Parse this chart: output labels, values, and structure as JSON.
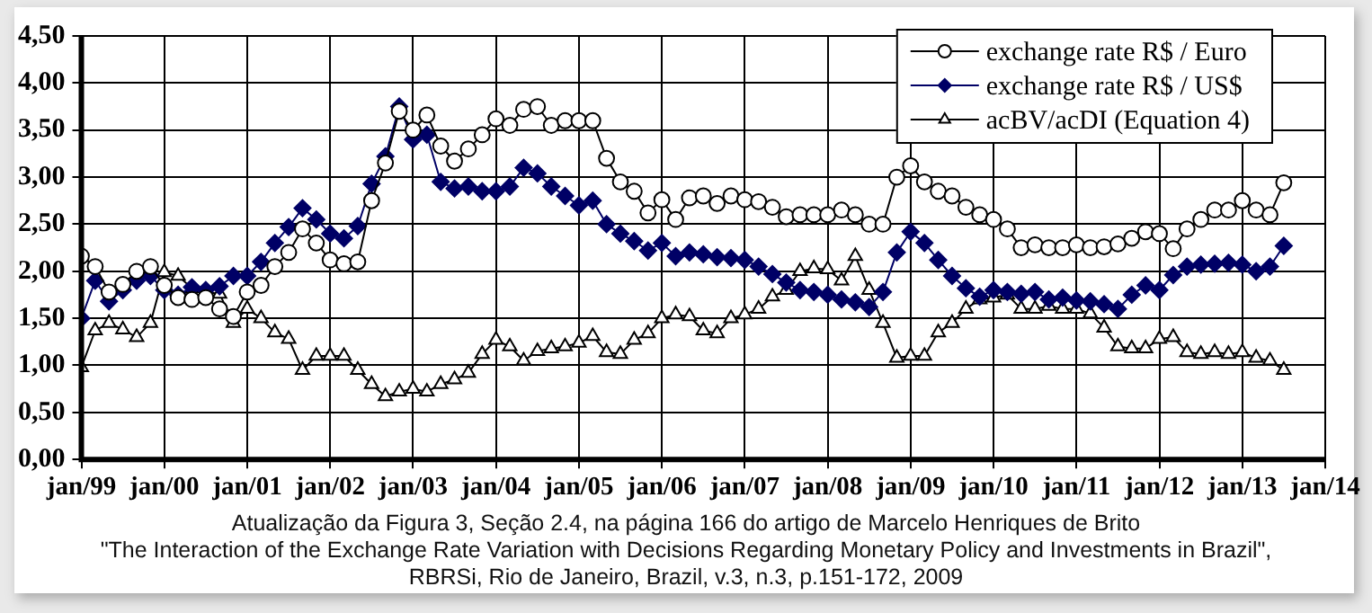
{
  "chart_data": {
    "type": "line",
    "x": [
      "1999-01",
      "1999-03",
      "1999-05",
      "1999-07",
      "1999-09",
      "1999-11",
      "2000-01",
      "2000-03",
      "2000-05",
      "2000-07",
      "2000-09",
      "2000-11",
      "2001-01",
      "2001-03",
      "2001-05",
      "2001-07",
      "2001-09",
      "2001-11",
      "2002-01",
      "2002-03",
      "2002-05",
      "2002-07",
      "2002-09",
      "2002-11",
      "2003-01",
      "2003-03",
      "2003-05",
      "2003-07",
      "2003-09",
      "2003-11",
      "2004-01",
      "2004-03",
      "2004-05",
      "2004-07",
      "2004-09",
      "2004-11",
      "2005-01",
      "2005-03",
      "2005-05",
      "2005-07",
      "2005-09",
      "2005-11",
      "2006-01",
      "2006-03",
      "2006-05",
      "2006-07",
      "2006-09",
      "2006-11",
      "2007-01",
      "2007-03",
      "2007-05",
      "2007-07",
      "2007-09",
      "2007-11",
      "2008-01",
      "2008-03",
      "2008-05",
      "2008-07",
      "2008-09",
      "2008-11",
      "2009-01",
      "2009-03",
      "2009-05",
      "2009-07",
      "2009-09",
      "2009-11",
      "2010-01",
      "2010-03",
      "2010-05",
      "2010-07",
      "2010-09",
      "2010-11",
      "2011-01",
      "2011-03",
      "2011-05",
      "2011-07",
      "2011-09",
      "2011-11",
      "2012-01",
      "2012-03",
      "2012-05",
      "2012-07",
      "2012-09",
      "2012-11",
      "2013-01",
      "2013-03",
      "2013-05",
      "2013-07"
    ],
    "series": [
      {
        "name": "exchange rate R$ / Euro",
        "color": "#000000",
        "marker": "circle",
        "values": [
          2.16,
          2.05,
          1.78,
          1.86,
          2.0,
          2.05,
          1.85,
          1.72,
          1.7,
          1.72,
          1.6,
          1.52,
          1.78,
          1.85,
          2.05,
          2.2,
          2.45,
          2.3,
          2.12,
          2.08,
          2.1,
          2.75,
          3.15,
          3.7,
          3.5,
          3.66,
          3.33,
          3.17,
          3.3,
          3.45,
          3.62,
          3.55,
          3.72,
          3.75,
          3.55,
          3.6,
          3.6,
          3.6,
          3.2,
          2.95,
          2.85,
          2.62,
          2.76,
          2.55,
          2.78,
          2.8,
          2.72,
          2.8,
          2.76,
          2.74,
          2.68,
          2.58,
          2.6,
          2.6,
          2.6,
          2.65,
          2.6,
          2.5,
          2.5,
          3.0,
          3.12,
          2.95,
          2.85,
          2.8,
          2.68,
          2.6,
          2.55,
          2.45,
          2.25,
          2.28,
          2.25,
          2.25,
          2.28,
          2.25,
          2.26,
          2.29,
          2.35,
          2.42,
          2.4,
          2.24,
          2.45,
          2.55,
          2.65,
          2.65,
          2.75,
          2.65,
          2.6,
          2.94
        ]
      },
      {
        "name": "exchange rate R$ / US$",
        "color": "#000066",
        "marker": "diamond",
        "values": [
          1.5,
          1.9,
          1.68,
          1.8,
          1.9,
          1.95,
          1.8,
          1.75,
          1.83,
          1.8,
          1.84,
          1.95,
          1.95,
          2.1,
          2.3,
          2.47,
          2.67,
          2.55,
          2.4,
          2.35,
          2.48,
          2.93,
          3.22,
          3.75,
          3.4,
          3.45,
          2.95,
          2.88,
          2.9,
          2.85,
          2.85,
          2.9,
          3.1,
          3.04,
          2.9,
          2.8,
          2.7,
          2.75,
          2.5,
          2.4,
          2.32,
          2.22,
          2.3,
          2.16,
          2.2,
          2.18,
          2.15,
          2.14,
          2.12,
          2.05,
          1.97,
          1.88,
          1.8,
          1.78,
          1.75,
          1.7,
          1.67,
          1.62,
          1.78,
          2.2,
          2.42,
          2.3,
          2.12,
          1.95,
          1.82,
          1.73,
          1.8,
          1.78,
          1.76,
          1.78,
          1.7,
          1.72,
          1.69,
          1.68,
          1.65,
          1.6,
          1.75,
          1.85,
          1.8,
          1.96,
          2.05,
          2.07,
          2.08,
          2.09,
          2.07,
          2.0,
          2.05,
          2.27
        ]
      },
      {
        "name": "acBV/acDI (Equation 4)",
        "color": "#000000",
        "marker": "triangle",
        "values": [
          0.98,
          1.37,
          1.45,
          1.38,
          1.3,
          1.45,
          1.99,
          1.95,
          1.82,
          1.78,
          1.76,
          1.45,
          1.6,
          1.5,
          1.35,
          1.28,
          0.95,
          1.1,
          1.1,
          1.1,
          0.95,
          0.8,
          0.67,
          0.72,
          0.75,
          0.72,
          0.8,
          0.85,
          0.92,
          1.12,
          1.27,
          1.2,
          1.05,
          1.15,
          1.18,
          1.2,
          1.24,
          1.31,
          1.14,
          1.12,
          1.27,
          1.34,
          1.5,
          1.54,
          1.52,
          1.37,
          1.34,
          1.5,
          1.54,
          1.6,
          1.73,
          1.8,
          2.0,
          2.03,
          2.02,
          1.9,
          2.16,
          1.8,
          1.45,
          1.08,
          1.1,
          1.1,
          1.35,
          1.45,
          1.6,
          1.7,
          1.72,
          1.75,
          1.6,
          1.6,
          1.63,
          1.6,
          1.6,
          1.55,
          1.4,
          1.2,
          1.18,
          1.18,
          1.28,
          1.3,
          1.14,
          1.12,
          1.14,
          1.12,
          1.14,
          1.08,
          1.05,
          0.95
        ]
      }
    ],
    "xlim": [
      "1999-01",
      "2014-01"
    ],
    "xticks": [
      {
        "value": "1999-01",
        "label": "jan/99"
      },
      {
        "value": "2000-01",
        "label": "jan/00"
      },
      {
        "value": "2001-01",
        "label": "jan/01"
      },
      {
        "value": "2002-01",
        "label": "jan/02"
      },
      {
        "value": "2003-01",
        "label": "jan/03"
      },
      {
        "value": "2004-01",
        "label": "jan/04"
      },
      {
        "value": "2005-01",
        "label": "jan/05"
      },
      {
        "value": "2006-01",
        "label": "jan/06"
      },
      {
        "value": "2007-01",
        "label": "jan/07"
      },
      {
        "value": "2008-01",
        "label": "jan/08"
      },
      {
        "value": "2009-01",
        "label": "jan/09"
      },
      {
        "value": "2010-01",
        "label": "jan/10"
      },
      {
        "value": "2011-01",
        "label": "jan/11"
      },
      {
        "value": "2012-01",
        "label": "jan/12"
      },
      {
        "value": "2013-01",
        "label": "jan/13"
      },
      {
        "value": "2014-01",
        "label": "jan/14"
      }
    ],
    "ylim": [
      0,
      4.5
    ],
    "yticks": [
      {
        "value": 0,
        "label": "0,00"
      },
      {
        "value": 0.5,
        "label": "0,50"
      },
      {
        "value": 1,
        "label": "1,00"
      },
      {
        "value": 1.5,
        "label": "1,50"
      },
      {
        "value": 2,
        "label": "2,00"
      },
      {
        "value": 2.5,
        "label": "2,50"
      },
      {
        "value": 3,
        "label": "3,00"
      },
      {
        "value": 3.5,
        "label": "3,50"
      },
      {
        "value": 4,
        "label": "4,00"
      },
      {
        "value": 4.5,
        "label": "4,50"
      }
    ],
    "grid": true,
    "legend": "top right",
    "line_style": "solid",
    "annotations": [
      "Atualização da Figura 3, Seção 2.4, na página 166 do artigo de Marcelo Henriques de Brito",
      "\"The Interaction of the Exchange Rate Variation with Decisions Regarding Monetary Policy and Investments in Brazil\",",
      "RBRSi, Rio de Janeiro, Brazil, v.3, n.3, p.151-172, 2009"
    ]
  }
}
